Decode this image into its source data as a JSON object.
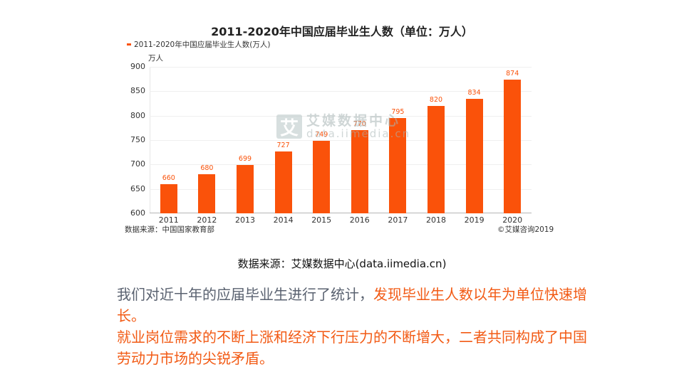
{
  "chart_data": {
    "type": "bar",
    "title": "2011-2020年中国应届毕业生人数（单位：万人）",
    "legend": [
      "2011-2020年中国应届毕业生人数(万人)"
    ],
    "legend_position": "top-left",
    "xlabel": "",
    "ylabel": "万人",
    "categories": [
      "2011",
      "2012",
      "2013",
      "2014",
      "2015",
      "2016",
      "2017",
      "2018",
      "2019",
      "2020"
    ],
    "series": [
      {
        "name": "2011-2020年中国应届毕业生人数(万人)",
        "values": [
          660,
          680,
          699,
          727,
          749,
          770,
          795,
          820,
          834,
          874
        ],
        "color": "#fa520a"
      }
    ],
    "ylim": [
      600,
      900
    ],
    "yticks": [
      600,
      650,
      700,
      750,
      800,
      850,
      900
    ],
    "grid": true,
    "annotations": [
      "数据来源：中国国家教育部",
      "©艾媒咨询2019"
    ],
    "watermark": "艾媒数据中心 data.iimedia.cn"
  },
  "chart": {
    "title": "2011-2020年中国应届毕业生人数（单位：万人）",
    "legend_label": "2011-2020年中国应届毕业生人数(万人)",
    "y_unit": "万人",
    "source": "数据来源：中国国家教育部",
    "copyright": "©艾媒咨询2019",
    "watermark_icon": "艾",
    "watermark_cn": "艾媒数据中心",
    "watermark_en": "data.iimedia.cn"
  },
  "slide": {
    "source_line": "数据来源：艾媒数据中心(data.iimedia.cn)",
    "para1_gray": "我们对近十年的应届毕业生进行了统计，",
    "para1_orange": "发现毕业生人数以年为单位快速增长。",
    "para2": "就业岗位需求的不断上涨和经济下行压力的不断增大，二者共同构成了中国劳动力市场的尖锐矛盾。"
  },
  "colors": {
    "bar": "#fa520a",
    "text_gray": "#5a6270",
    "text_orange": "#f25a14"
  }
}
